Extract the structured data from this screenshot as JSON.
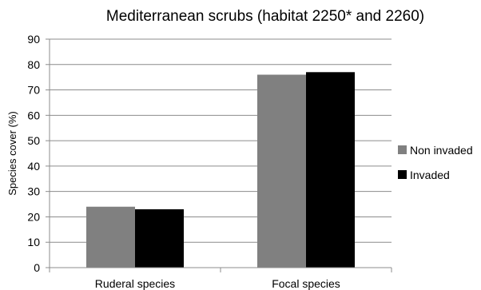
{
  "chart_data": {
    "type": "bar",
    "title": "Mediterranean scrubs (habitat 2250* and 2260)",
    "xlabel": "",
    "ylabel": "Species cover (%)",
    "ylim": [
      0,
      90
    ],
    "yticks": [
      0,
      10,
      20,
      30,
      40,
      50,
      60,
      70,
      80,
      90
    ],
    "grid": true,
    "legend_position": "right",
    "categories": [
      "Ruderal species",
      "Focal species"
    ],
    "series": [
      {
        "name": "Non invaded",
        "color": "#808080",
        "values": [
          24,
          76
        ]
      },
      {
        "name": "Invaded",
        "color": "#000000",
        "values": [
          23,
          77
        ]
      }
    ]
  }
}
